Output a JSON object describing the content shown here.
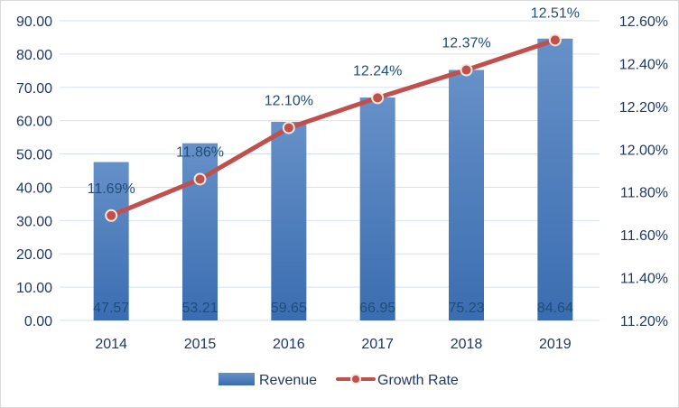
{
  "chart_data": {
    "type": "bar",
    "categories": [
      "2014",
      "2015",
      "2016",
      "2017",
      "2018",
      "2019"
    ],
    "series": [
      {
        "name": "Revenue",
        "type": "bar",
        "axis": "left",
        "values": [
          47.57,
          53.21,
          59.65,
          66.95,
          75.23,
          84.64
        ],
        "labels": [
          "47.57",
          "53.21",
          "59.65",
          "66.95",
          "75.23",
          "84.64"
        ],
        "color": "#4a7ebf"
      },
      {
        "name": "Growth Rate",
        "type": "line",
        "axis": "right",
        "values": [
          11.69,
          11.86,
          12.1,
          12.24,
          12.37,
          12.51
        ],
        "labels": [
          "11.69%",
          "11.86%",
          "12.10%",
          "12.24%",
          "12.37%",
          "12.51%"
        ],
        "color": "#c0504d"
      }
    ],
    "y_left": {
      "range": [
        0,
        90
      ],
      "ticks": [
        "0.00",
        "10.00",
        "20.00",
        "30.00",
        "40.00",
        "50.00",
        "60.00",
        "70.00",
        "80.00",
        "90.00"
      ]
    },
    "y_right": {
      "range": [
        11.2,
        12.6
      ],
      "ticks": [
        "11.20%",
        "11.40%",
        "11.60%",
        "11.80%",
        "12.00%",
        "12.20%",
        "12.40%",
        "12.60%"
      ]
    },
    "grid": true,
    "legend": {
      "placement": "bottom",
      "entries": [
        "Revenue",
        "Growth Rate"
      ]
    }
  }
}
